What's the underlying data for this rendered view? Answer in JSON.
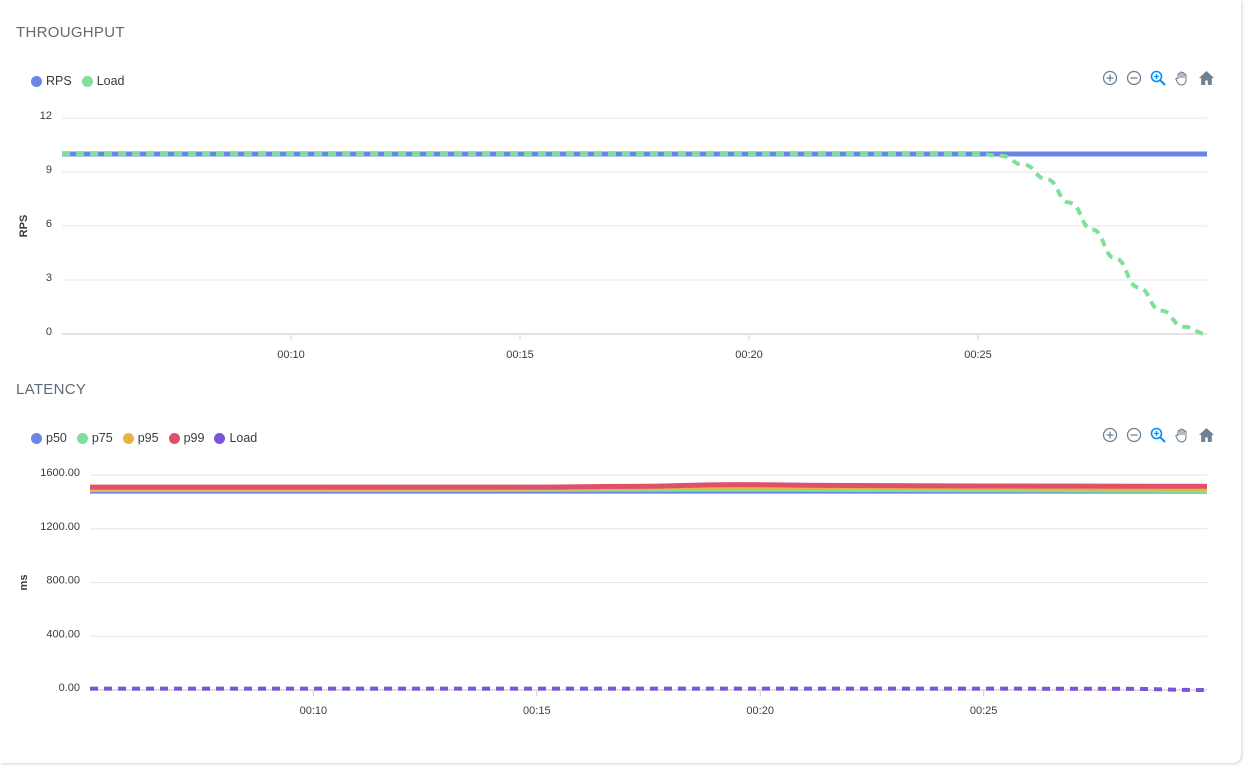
{
  "throughput": {
    "title": "THROUGHPUT",
    "legend": [
      {
        "label": "RPS",
        "color": "#6a85e8"
      },
      {
        "label": "Load",
        "color": "#7fe09a"
      }
    ]
  },
  "latency": {
    "title": "LATENCY",
    "legend": [
      {
        "label": "p50",
        "color": "#6a85e8"
      },
      {
        "label": "p75",
        "color": "#7fe09a"
      },
      {
        "label": "p95",
        "color": "#e8b43c"
      },
      {
        "label": "p99",
        "color": "#e0506a"
      },
      {
        "label": "Load",
        "color": "#7b55d6"
      }
    ]
  },
  "toolbar": {
    "icons": [
      "zoom-in-icon",
      "zoom-out-icon",
      "selection-zoom-icon",
      "pan-hand-icon",
      "home-reset-icon"
    ]
  },
  "chart_data": [
    {
      "type": "line",
      "title": "THROUGHPUT",
      "ylabel": "RPS",
      "xlabel": "",
      "ylim": [
        0,
        12
      ],
      "yticks": [
        0,
        3,
        6,
        9,
        12
      ],
      "ytick_labels": [
        "0",
        "3",
        "6",
        "9",
        "12"
      ],
      "xlim": [
        "00:05",
        "00:30"
      ],
      "xticks": [
        "00:10",
        "00:15",
        "00:20",
        "00:25"
      ],
      "grid": true,
      "legend_position": "top-left",
      "series": [
        {
          "name": "RPS",
          "color": "#6a85e8",
          "style": "solid",
          "x": [
            "00:05",
            "00:25",
            "00:28",
            "00:30"
          ],
          "y": [
            10,
            10,
            10,
            10
          ]
        },
        {
          "name": "Load",
          "color": "#7fe09a",
          "style": "dashed",
          "x": [
            "00:05",
            "00:25",
            "00:25.5",
            "00:26",
            "00:26.5",
            "00:27",
            "00:27.5",
            "00:28",
            "00:28.5",
            "00:29",
            "00:29.5",
            "00:30"
          ],
          "y": [
            10,
            10,
            9.9,
            9.4,
            8.6,
            7.3,
            5.8,
            4.2,
            2.6,
            1.3,
            0.4,
            0
          ]
        }
      ]
    },
    {
      "type": "line",
      "title": "LATENCY",
      "ylabel": "ms",
      "xlabel": "",
      "ylim": [
        0,
        1600
      ],
      "yticks": [
        0,
        400,
        800,
        1200,
        1600
      ],
      "ytick_labels": [
        "0.00",
        "400.00",
        "800.00",
        "1200.00",
        "1600.00"
      ],
      "xlim": [
        "00:05",
        "00:30"
      ],
      "xticks": [
        "00:10",
        "00:15",
        "00:20",
        "00:25"
      ],
      "grid": true,
      "legend_position": "top-left",
      "series": [
        {
          "name": "p50",
          "color": "#6a85e8",
          "style": "solid",
          "x": [
            "00:05",
            "00:10",
            "00:15",
            "00:20",
            "00:25",
            "00:30"
          ],
          "y": [
            1480,
            1480,
            1480,
            1480,
            1480,
            1480
          ]
        },
        {
          "name": "p75",
          "color": "#7fe09a",
          "style": "solid",
          "x": [
            "00:05",
            "00:10",
            "00:15",
            "00:20",
            "00:25",
            "00:30"
          ],
          "y": [
            1492,
            1492,
            1493,
            1495,
            1490,
            1485
          ]
        },
        {
          "name": "p95",
          "color": "#e8b43c",
          "style": "solid",
          "x": [
            "00:05",
            "00:10",
            "00:15",
            "00:20",
            "00:25",
            "00:30"
          ],
          "y": [
            1500,
            1500,
            1502,
            1510,
            1505,
            1500
          ]
        },
        {
          "name": "p99",
          "color": "#e0506a",
          "style": "solid",
          "x": [
            "00:05",
            "00:10",
            "00:15",
            "00:17",
            "00:19.5",
            "00:22",
            "00:25",
            "00:30"
          ],
          "y": [
            1510,
            1510,
            1510,
            1515,
            1528,
            1522,
            1518,
            1516
          ]
        },
        {
          "name": "Load",
          "color": "#7b55d6",
          "style": "dashed",
          "x": [
            "00:05",
            "00:25",
            "00:28",
            "00:30"
          ],
          "y": [
            10,
            10,
            9,
            0
          ]
        }
      ]
    }
  ]
}
